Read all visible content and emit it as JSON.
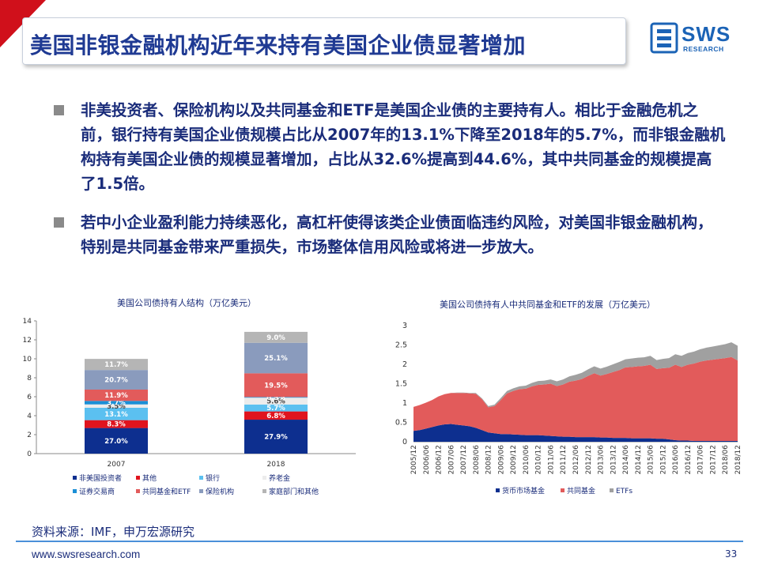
{
  "header": {
    "title": "美国非银金融机构近年来持有美国企业债显著增加",
    "logo_text": "SWS",
    "logo_sub": "RESEARCH"
  },
  "bullets": [
    "非美投资者、保险机构以及共同基金和ETF是美国企业债的主要持有人。相比于金融危机之前，银行持有美国企业债规模占比从2007年的13.1%下降至2018年的5.7%，而非银金融机构持有美国企业债的规模显著增加，占比从32.6%提高到44.6%，其中共同基金的规模提高了1.5倍。",
    "若中小企业盈利能力持续恶化，高杠杆使得该类企业债面临违约风险，对美国非银金融机构，特别是共同基金带来严重损失，市场整体信用风险或将进一步放大。"
  ],
  "chart_data": [
    {
      "type": "bar",
      "stacked": true,
      "title": "美国公司债持有人结构（万亿美元）",
      "categories": [
        "2007",
        "2018"
      ],
      "ylim": [
        0,
        14
      ],
      "yticks": [
        0,
        2,
        4,
        6,
        8,
        10,
        12,
        14
      ],
      "series": [
        {
          "name": "非美国投资者",
          "color": "#0d2f8f",
          "values": [
            2.7,
            3.58
          ],
          "labels": [
            "27.0%",
            "27.9%"
          ]
        },
        {
          "name": "其他",
          "color": "#e0141e",
          "values": [
            0.83,
            0.87
          ],
          "labels": [
            "8.3%",
            "6.8%"
          ]
        },
        {
          "name": "银行",
          "color": "#5bc0f0",
          "values": [
            1.31,
            0.73
          ],
          "labels": [
            "13.1%",
            "5.7%"
          ]
        },
        {
          "name": "养老金",
          "color": "#ececec",
          "values": [
            0.35,
            0.72
          ],
          "labels": [
            "3.5%",
            "5.6%"
          ]
        },
        {
          "name": "证券交易商",
          "color": "#1b8fd6",
          "values": [
            0.37,
            0.07
          ],
          "labels": [
            "3.7%",
            "0.5%"
          ]
        },
        {
          "name": "共同基金和ETF",
          "color": "#e25b5b",
          "values": [
            1.19,
            2.5
          ],
          "labels": [
            "11.9%",
            "19.5%"
          ]
        },
        {
          "name": "保险机构",
          "color": "#8a9bbd",
          "values": [
            2.07,
            3.22
          ],
          "labels": [
            "20.7%",
            "25.1%"
          ]
        },
        {
          "name": "家庭部门和其他",
          "color": "#b5b5b5",
          "values": [
            1.17,
            1.15
          ],
          "labels": [
            "11.7%",
            "9.0%"
          ]
        }
      ],
      "legend_position": "bottom"
    },
    {
      "type": "area",
      "stacked": true,
      "title": "美国公司债持有人中共同基金和ETF的发展（万亿美元）",
      "x": [
        "2005/12",
        "2006/03",
        "2006/06",
        "2006/09",
        "2006/12",
        "2007/03",
        "2007/06",
        "2007/09",
        "2007/12",
        "2008/03",
        "2008/06",
        "2008/09",
        "2008/12",
        "2009/03",
        "2009/06",
        "2009/09",
        "2009/12",
        "2010/03",
        "2010/06",
        "2010/09",
        "2010/12",
        "2011/03",
        "2011/06",
        "2011/09",
        "2011/12",
        "2012/03",
        "2012/06",
        "2012/09",
        "2012/12",
        "2013/03",
        "2013/06",
        "2013/09",
        "2013/12",
        "2014/03",
        "2014/06",
        "2014/09",
        "2014/12",
        "2015/03",
        "2015/06",
        "2015/09",
        "2015/12",
        "2016/03",
        "2016/06",
        "2016/09",
        "2016/12",
        "2017/03",
        "2017/06",
        "2017/09",
        "2017/12",
        "2018/03",
        "2018/06",
        "2018/09",
        "2018/12"
      ],
      "xticks": [
        "2005/12",
        "2006/06",
        "2006/12",
        "2007/06",
        "2007/12",
        "2008/06",
        "2008/12",
        "2009/06",
        "2009/12",
        "2010/06",
        "2010/12",
        "2011/06",
        "2011/12",
        "2012/06",
        "2012/12",
        "2013/06",
        "2013/12",
        "2014/06",
        "2014/12",
        "2015/06",
        "2015/12",
        "2016/06",
        "2016/12",
        "2017/06",
        "2017/12",
        "2018/06",
        "2018/12"
      ],
      "ylim": [
        0,
        3
      ],
      "yticks": [
        "0",
        "0.5",
        "1",
        "1.5",
        "2",
        "2.5",
        "3"
      ],
      "series": [
        {
          "name": "货币市场基金",
          "color": "#0d2f8f",
          "values": [
            0.28,
            0.3,
            0.34,
            0.38,
            0.42,
            0.45,
            0.46,
            0.44,
            0.42,
            0.4,
            0.36,
            0.3,
            0.24,
            0.22,
            0.2,
            0.2,
            0.19,
            0.18,
            0.17,
            0.17,
            0.17,
            0.16,
            0.15,
            0.14,
            0.13,
            0.13,
            0.12,
            0.12,
            0.12,
            0.12,
            0.11,
            0.11,
            0.1,
            0.1,
            0.1,
            0.09,
            0.09,
            0.09,
            0.09,
            0.08,
            0.08,
            0.06,
            0.04,
            0.03,
            0.03,
            0.02,
            0.02,
            0.02,
            0.02,
            0.02,
            0.02,
            0.02,
            0.02
          ]
        },
        {
          "name": "共同基金",
          "color": "#e25b5b",
          "values": [
            0.62,
            0.65,
            0.67,
            0.7,
            0.75,
            0.78,
            0.8,
            0.82,
            0.84,
            0.85,
            0.88,
            0.8,
            0.65,
            0.7,
            0.88,
            1.05,
            1.12,
            1.18,
            1.2,
            1.26,
            1.3,
            1.32,
            1.35,
            1.3,
            1.35,
            1.42,
            1.46,
            1.5,
            1.58,
            1.65,
            1.6,
            1.64,
            1.7,
            1.75,
            1.82,
            1.84,
            1.86,
            1.87,
            1.9,
            1.8,
            1.82,
            1.85,
            1.95,
            1.9,
            1.96,
            2.0,
            2.05,
            2.08,
            2.1,
            2.12,
            2.14,
            2.17,
            2.08
          ]
        },
        {
          "name": "ETFs",
          "color": "#a0a0a0",
          "values": [
            0.0,
            0.0,
            0.0,
            0.0,
            0.0,
            0.0,
            0.0,
            0.01,
            0.01,
            0.01,
            0.02,
            0.02,
            0.03,
            0.04,
            0.05,
            0.06,
            0.07,
            0.07,
            0.08,
            0.09,
            0.1,
            0.1,
            0.11,
            0.12,
            0.13,
            0.14,
            0.15,
            0.16,
            0.17,
            0.18,
            0.18,
            0.19,
            0.2,
            0.21,
            0.21,
            0.22,
            0.22,
            0.22,
            0.23,
            0.23,
            0.24,
            0.25,
            0.27,
            0.29,
            0.3,
            0.31,
            0.32,
            0.33,
            0.34,
            0.35,
            0.36,
            0.38,
            0.38
          ]
        }
      ],
      "legend_position": "bottom"
    }
  ],
  "footer": {
    "source": "资料来源：IMF，申万宏源研究",
    "url": "www.swsresearch.com",
    "page": "33"
  }
}
